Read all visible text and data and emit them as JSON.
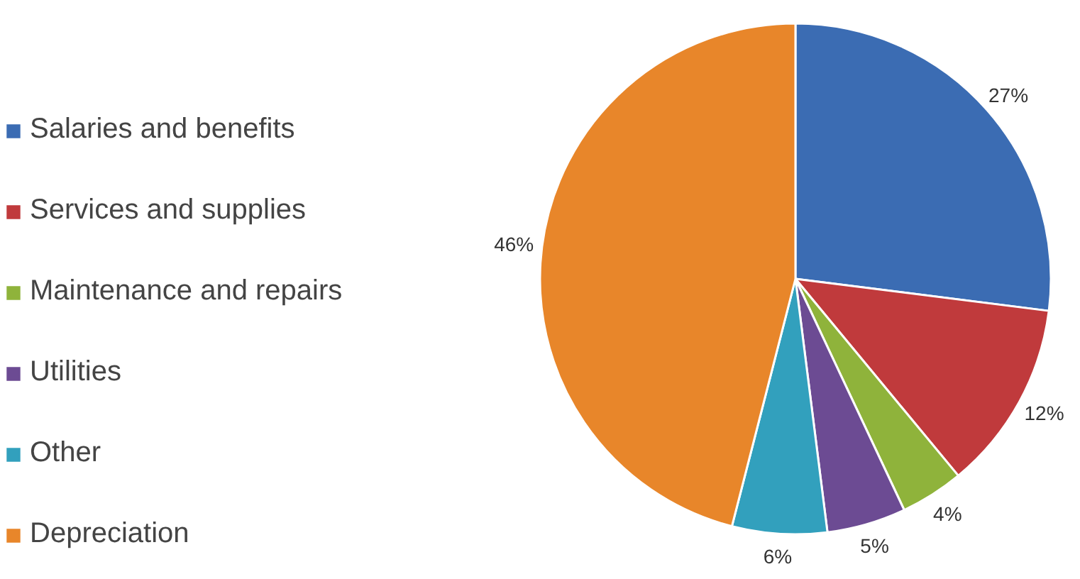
{
  "chart_data": {
    "type": "pie",
    "categories": [
      "Salaries and benefits",
      "Services and supplies",
      "Maintenance and repairs",
      "Utilities",
      "Other",
      "Depreciation"
    ],
    "values": [
      27,
      12,
      4,
      5,
      6,
      46
    ],
    "colors": [
      "#3b6cb3",
      "#c03a3c",
      "#8fb33b",
      "#6c4b93",
      "#32a0bd",
      "#e8862a"
    ],
    "value_labels": [
      "27%",
      "12%",
      "4%",
      "5%",
      "6%",
      "46%"
    ],
    "legend": "left"
  }
}
